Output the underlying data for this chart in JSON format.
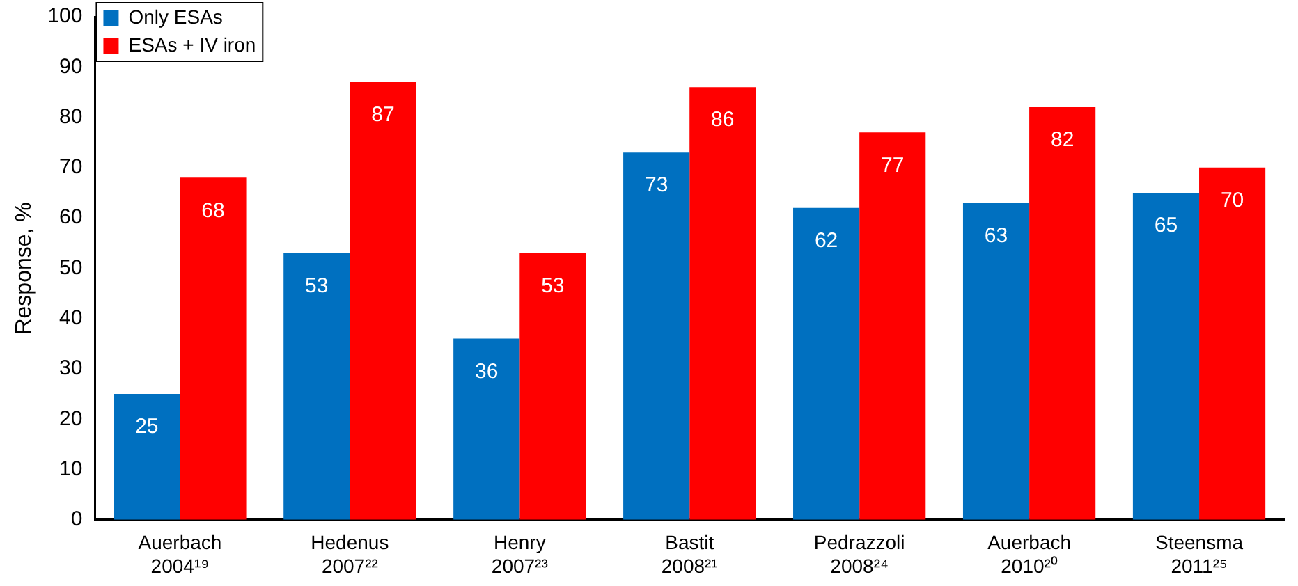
{
  "chart_data": {
    "type": "bar",
    "ylabel": "Response, %",
    "categories": [
      "Auerbach\n2004¹⁹",
      "Hedenus\n2007²²",
      "Henry\n2007²³",
      "Bastit\n2008²¹",
      "Pedrazzoli\n2008²⁴",
      "Auerbach\n2010²⁰",
      "Steensma\n2011²⁵"
    ],
    "series": [
      {
        "name": "Only ESAs",
        "color": "#0070c0",
        "values": [
          25,
          53,
          36,
          73,
          62,
          63,
          65
        ]
      },
      {
        "name": "ESAs + IV iron",
        "color": "#ff0000",
        "values": [
          68,
          87,
          53,
          86,
          77,
          82,
          70
        ]
      }
    ],
    "ylim": [
      0,
      100
    ],
    "yticks": [
      0,
      10,
      20,
      30,
      40,
      50,
      60,
      70,
      80,
      90,
      100
    ],
    "grid": false,
    "legend": "top left",
    "data_labels": true
  }
}
